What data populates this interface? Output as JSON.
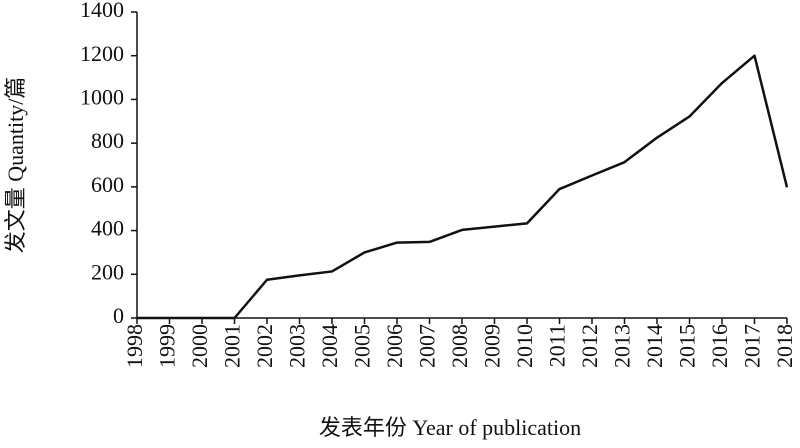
{
  "chart_data": {
    "type": "line",
    "x_label": "发表年份 Year of publication",
    "y_label": "发文量 Quantity/篇",
    "categories": [
      "1998",
      "1999",
      "2000",
      "2001",
      "2002",
      "2003",
      "2004",
      "2005",
      "2006",
      "2007",
      "2008",
      "2009",
      "2010",
      "2011",
      "2012",
      "2013",
      "2014",
      "2015",
      "2016",
      "2017",
      "2018"
    ],
    "values": [
      0,
      0,
      0,
      0,
      175,
      195,
      213,
      300,
      345,
      348,
      403,
      418,
      433,
      590,
      652,
      713,
      825,
      922,
      1075,
      1200,
      598
    ],
    "color": "#111111",
    "ylim": [
      0,
      1400
    ],
    "yticks": [
      0,
      200,
      400,
      600,
      800,
      1000,
      1200,
      1400
    ],
    "grid": false
  }
}
